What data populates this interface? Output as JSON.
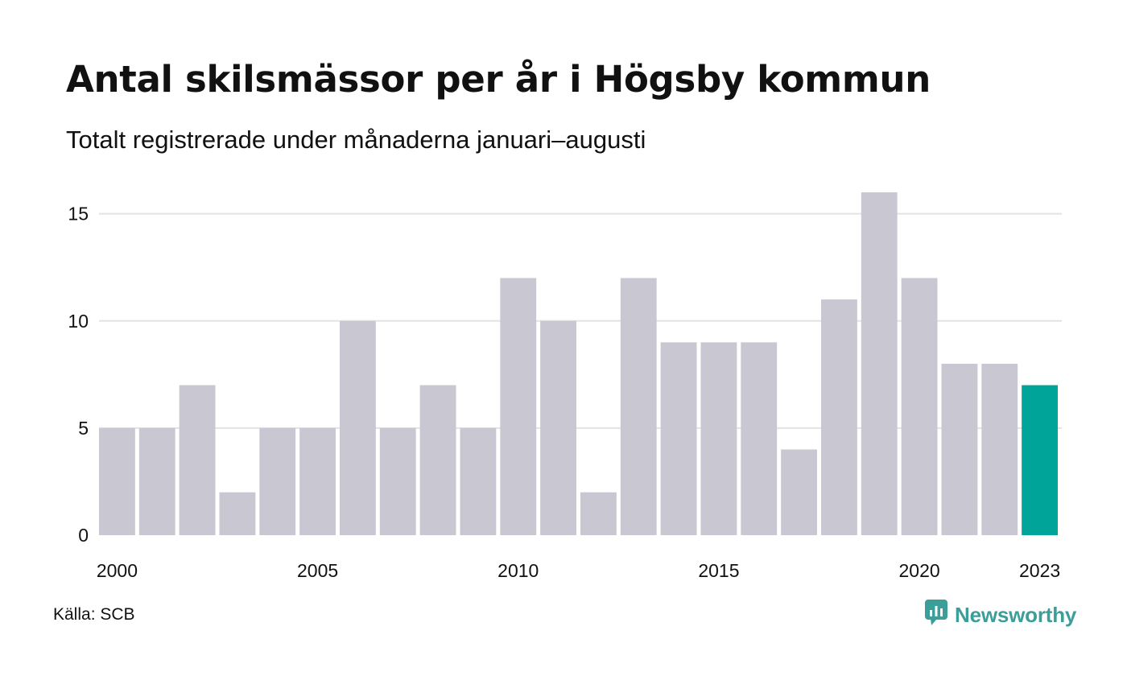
{
  "header": {
    "title": "Antal skilsmässor per år i Högsby kommun",
    "subtitle": "Totalt registrerade under månaderna januari–augusti"
  },
  "footer": {
    "source": "Källa: SCB",
    "brand": "Newsworthy",
    "brand_icon": "newsworthy-logo-icon",
    "brand_color": "#3b9e98"
  },
  "chart_data": {
    "type": "bar",
    "title": "Antal skilsmässor per år i Högsby kommun",
    "subtitle": "Totalt registrerade under månaderna januari–augusti",
    "categories": [
      "2000",
      "2001",
      "2002",
      "2003",
      "2004",
      "2005",
      "2006",
      "2007",
      "2008",
      "2009",
      "2010",
      "2011",
      "2012",
      "2013",
      "2014",
      "2015",
      "2016",
      "2017",
      "2018",
      "2019",
      "2020",
      "2021",
      "2022",
      "2023"
    ],
    "values": [
      5,
      5,
      7,
      2,
      5,
      5,
      10,
      5,
      7,
      5,
      12,
      10,
      2,
      12,
      9,
      9,
      9,
      4,
      11,
      16,
      12,
      8,
      8,
      7
    ],
    "xlabel": "",
    "ylabel": "",
    "ylim": [
      0,
      16
    ],
    "yticks": [
      0,
      5,
      10,
      15
    ],
    "xtick_labels": [
      "2000",
      "2005",
      "2010",
      "2015",
      "2020",
      "2023"
    ],
    "grid": true,
    "bar_color": "#c8c7d2",
    "highlight_color": "#00a499",
    "highlight_category": "2023",
    "grid_color": "#e3e3e3"
  }
}
